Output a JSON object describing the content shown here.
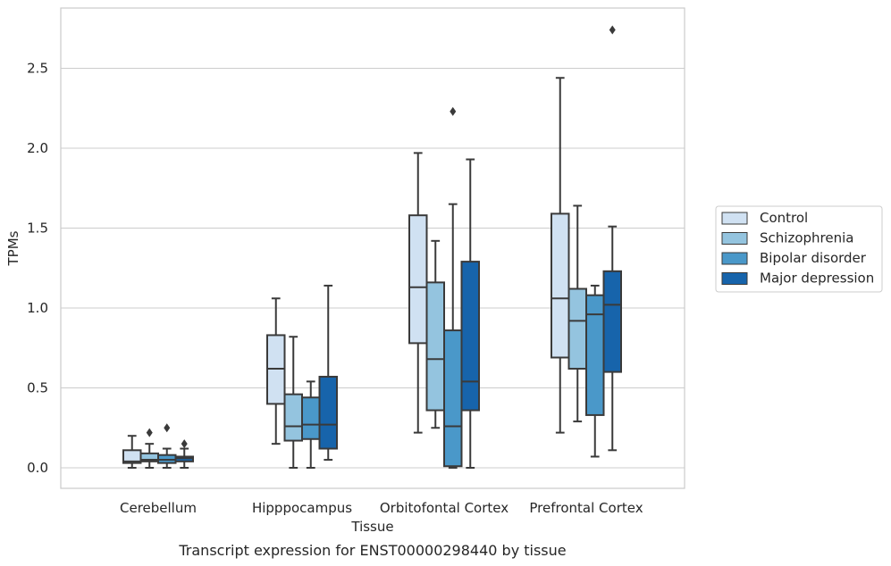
{
  "caption": "Transcript expression for ENST00000298440 by tissue",
  "chart_data": {
    "type": "box",
    "xlabel": "Tissue",
    "ylabel": "TPMs",
    "ylim": [
      -0.13,
      2.87
    ],
    "yticks": [
      "0.0",
      "0.5",
      "1.0",
      "1.5",
      "2.0",
      "2.5"
    ],
    "ytick_values": [
      0.0,
      0.5,
      1.0,
      1.5,
      2.0,
      2.5
    ],
    "grid": "horizontal",
    "legend_position": "right",
    "categories": [
      "Cerebellum",
      "Hipppocampus",
      "Orbitofontal Cortex",
      "Prefrontal Cortex"
    ],
    "series": [
      {
        "name": "Control",
        "color": "#d0e1f2",
        "boxes": [
          {
            "min": 0.0,
            "q1": 0.03,
            "median": 0.04,
            "q3": 0.11,
            "max": 0.2,
            "outliers": []
          },
          {
            "min": 0.15,
            "q1": 0.4,
            "median": 0.62,
            "q3": 0.83,
            "max": 1.06,
            "outliers": []
          },
          {
            "min": 0.22,
            "q1": 0.78,
            "median": 1.13,
            "q3": 1.58,
            "max": 1.97,
            "outliers": []
          },
          {
            "min": 0.22,
            "q1": 0.69,
            "median": 1.06,
            "q3": 1.59,
            "max": 2.44,
            "outliers": []
          }
        ]
      },
      {
        "name": "Schizophrenia",
        "color": "#94c4df",
        "boxes": [
          {
            "min": 0.0,
            "q1": 0.04,
            "median": 0.05,
            "q3": 0.09,
            "max": 0.15,
            "outliers": [
              0.22
            ]
          },
          {
            "min": 0.0,
            "q1": 0.17,
            "median": 0.26,
            "q3": 0.46,
            "max": 0.82,
            "outliers": []
          },
          {
            "min": 0.25,
            "q1": 0.36,
            "median": 0.68,
            "q3": 1.16,
            "max": 1.42,
            "outliers": []
          },
          {
            "min": 0.29,
            "q1": 0.62,
            "median": 0.92,
            "q3": 1.12,
            "max": 1.64,
            "outliers": []
          }
        ]
      },
      {
        "name": "Bipolar disorder",
        "color": "#4a98c9",
        "boxes": [
          {
            "min": 0.0,
            "q1": 0.03,
            "median": 0.05,
            "q3": 0.08,
            "max": 0.12,
            "outliers": [
              0.25
            ]
          },
          {
            "min": 0.0,
            "q1": 0.18,
            "median": 0.27,
            "q3": 0.44,
            "max": 0.54,
            "outliers": []
          },
          {
            "min": 0.0,
            "q1": 0.01,
            "median": 0.26,
            "q3": 0.86,
            "max": 1.65,
            "outliers": [
              2.23
            ]
          },
          {
            "min": 0.07,
            "q1": 0.33,
            "median": 0.96,
            "q3": 1.08,
            "max": 1.14,
            "outliers": []
          }
        ]
      },
      {
        "name": "Major depression",
        "color": "#1764ab",
        "boxes": [
          {
            "min": 0.0,
            "q1": 0.04,
            "median": 0.06,
            "q3": 0.07,
            "max": 0.12,
            "outliers": [
              0.15
            ]
          },
          {
            "min": 0.05,
            "q1": 0.12,
            "median": 0.27,
            "q3": 0.57,
            "max": 1.14,
            "outliers": []
          },
          {
            "min": 0.0,
            "q1": 0.36,
            "median": 0.54,
            "q3": 1.29,
            "max": 1.93,
            "outliers": []
          },
          {
            "min": 0.11,
            "q1": 0.6,
            "median": 1.02,
            "q3": 1.23,
            "max": 1.51,
            "outliers": [
              2.74
            ]
          }
        ]
      }
    ]
  }
}
